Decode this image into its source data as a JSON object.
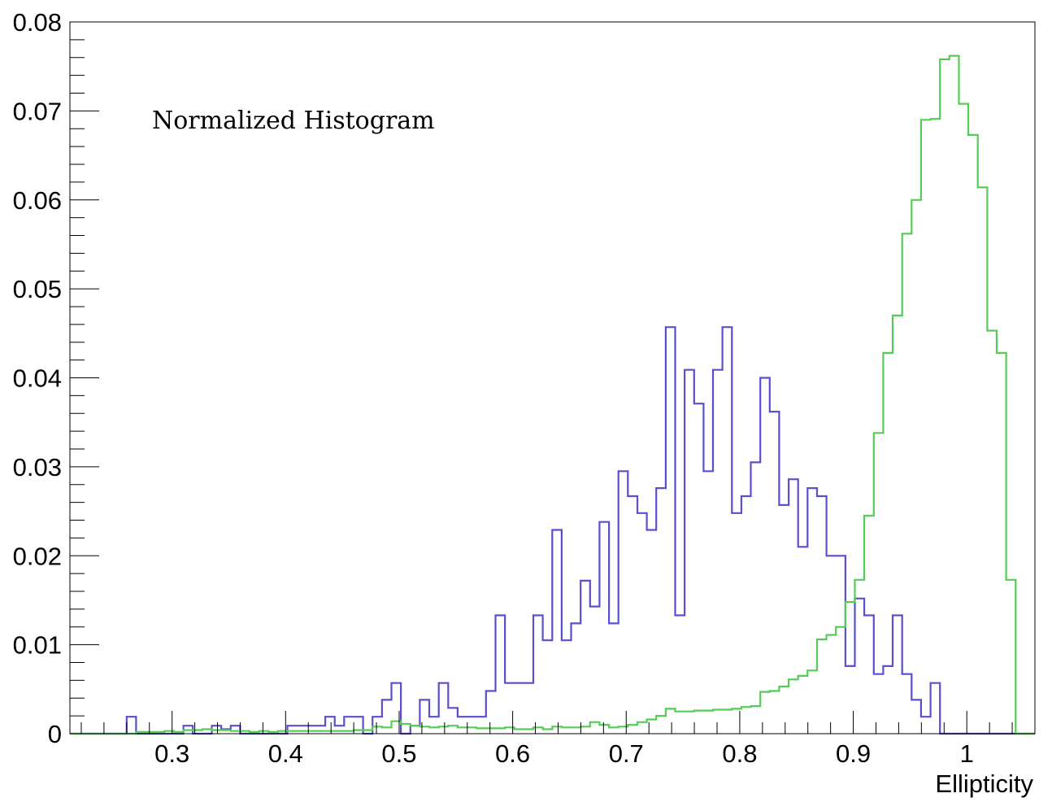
{
  "chart_data": {
    "type": "step-histogram",
    "annotation": "Normalized Histogram",
    "xlabel": "Ellipticity",
    "ylabel": "",
    "xlim": [
      0.21,
      1.06
    ],
    "ylim": [
      0,
      0.08
    ],
    "bin_width": 0.00833,
    "x_ticks": [
      {
        "value": 0.3,
        "label": "0.3"
      },
      {
        "value": 0.4,
        "label": "0.4"
      },
      {
        "value": 0.5,
        "label": "0.5"
      },
      {
        "value": 0.6,
        "label": "0.6"
      },
      {
        "value": 0.7,
        "label": "0.7"
      },
      {
        "value": 0.8,
        "label": "0.8"
      },
      {
        "value": 0.9,
        "label": "0.9"
      },
      {
        "value": 1.0,
        "label": "1"
      }
    ],
    "y_ticks": [
      {
        "value": 0,
        "label": "0"
      },
      {
        "value": 0.01,
        "label": "0.01"
      },
      {
        "value": 0.02,
        "label": "0.02"
      },
      {
        "value": 0.03,
        "label": "0.03"
      },
      {
        "value": 0.04,
        "label": "0.04"
      },
      {
        "value": 0.05,
        "label": "0.05"
      },
      {
        "value": 0.06,
        "label": "0.06"
      },
      {
        "value": 0.07,
        "label": "0.07"
      },
      {
        "value": 0.08,
        "label": "0.08"
      }
    ],
    "series": [
      {
        "color": "#5a4fcf",
        "bins": [
          [
            0.259,
            0.0019
          ],
          [
            0.309,
            0.0009
          ],
          [
            0.334,
            0.0009
          ],
          [
            0.342,
            0.0005
          ],
          [
            0.351,
            0.0009
          ],
          [
            0.401,
            0.0009
          ],
          [
            0.409,
            0.0009
          ],
          [
            0.417,
            0.0009
          ],
          [
            0.426,
            0.0009
          ],
          [
            0.434,
            0.0019
          ],
          [
            0.442,
            0.0009
          ],
          [
            0.451,
            0.0019
          ],
          [
            0.459,
            0.0019
          ],
          [
            0.476,
            0.0019
          ],
          [
            0.484,
            0.0038
          ],
          [
            0.492,
            0.0057
          ],
          [
            0.509,
            0.0009
          ],
          [
            0.517,
            0.0038
          ],
          [
            0.526,
            0.0019
          ],
          [
            0.534,
            0.0057
          ],
          [
            0.542,
            0.0029
          ],
          [
            0.551,
            0.0019
          ],
          [
            0.559,
            0.0019
          ],
          [
            0.567,
            0.0019
          ],
          [
            0.576,
            0.0048
          ],
          [
            0.584,
            0.0133
          ],
          [
            0.592,
            0.0057
          ],
          [
            0.601,
            0.0057
          ],
          [
            0.609,
            0.0057
          ],
          [
            0.617,
            0.0133
          ],
          [
            0.626,
            0.0105
          ],
          [
            0.634,
            0.0229
          ],
          [
            0.642,
            0.0105
          ],
          [
            0.651,
            0.0124
          ],
          [
            0.659,
            0.0172
          ],
          [
            0.667,
            0.0143
          ],
          [
            0.676,
            0.0238
          ],
          [
            0.684,
            0.0124
          ],
          [
            0.692,
            0.0295
          ],
          [
            0.701,
            0.0267
          ],
          [
            0.709,
            0.0248
          ],
          [
            0.717,
            0.0229
          ],
          [
            0.726,
            0.0276
          ],
          [
            0.734,
            0.0457
          ],
          [
            0.742,
            0.0133
          ],
          [
            0.751,
            0.0409
          ],
          [
            0.759,
            0.0371
          ],
          [
            0.767,
            0.0295
          ],
          [
            0.776,
            0.0409
          ],
          [
            0.784,
            0.0457
          ],
          [
            0.792,
            0.0248
          ],
          [
            0.801,
            0.0267
          ],
          [
            0.809,
            0.0305
          ],
          [
            0.817,
            0.04
          ],
          [
            0.826,
            0.0362
          ],
          [
            0.834,
            0.0257
          ],
          [
            0.842,
            0.0286
          ],
          [
            0.851,
            0.021
          ],
          [
            0.859,
            0.0276
          ],
          [
            0.867,
            0.0267
          ],
          [
            0.876,
            0.02
          ],
          [
            0.884,
            0.02
          ],
          [
            0.892,
            0.0076
          ],
          [
            0.901,
            0.0152
          ],
          [
            0.909,
            0.0133
          ],
          [
            0.917,
            0.0067
          ],
          [
            0.926,
            0.0076
          ],
          [
            0.934,
            0.0133
          ],
          [
            0.942,
            0.0067
          ],
          [
            0.951,
            0.0038
          ],
          [
            0.959,
            0.0019
          ],
          [
            0.967,
            0.0057
          ]
        ]
      },
      {
        "color": "#55cc55",
        "bins": [
          [
            0.267,
            0.0002
          ],
          [
            0.276,
            0.0002
          ],
          [
            0.284,
            0.0002
          ],
          [
            0.292,
            0.0003
          ],
          [
            0.301,
            0.0002
          ],
          [
            0.309,
            0.0004
          ],
          [
            0.317,
            0.0004
          ],
          [
            0.326,
            0.0005
          ],
          [
            0.334,
            0.0004
          ],
          [
            0.342,
            0.0004
          ],
          [
            0.351,
            0.0003
          ],
          [
            0.359,
            0.0003
          ],
          [
            0.367,
            0.0002
          ],
          [
            0.376,
            0.0003
          ],
          [
            0.384,
            0.0002
          ],
          [
            0.392,
            0.0003
          ],
          [
            0.401,
            0.0003
          ],
          [
            0.409,
            0.0003
          ],
          [
            0.417,
            0.0003
          ],
          [
            0.426,
            0.0003
          ],
          [
            0.434,
            0.0003
          ],
          [
            0.442,
            0.0003
          ],
          [
            0.451,
            0.0003
          ],
          [
            0.459,
            0.0004
          ],
          [
            0.467,
            0.0004
          ],
          [
            0.476,
            0.0008
          ],
          [
            0.484,
            0.0007
          ],
          [
            0.492,
            0.0014
          ],
          [
            0.501,
            0.0011
          ],
          [
            0.509,
            0.0009
          ],
          [
            0.517,
            0.0008
          ],
          [
            0.526,
            0.0007
          ],
          [
            0.534,
            0.0008
          ],
          [
            0.542,
            0.0009
          ],
          [
            0.551,
            0.0007
          ],
          [
            0.559,
            0.0007
          ],
          [
            0.567,
            0.0006
          ],
          [
            0.576,
            0.0006
          ],
          [
            0.584,
            0.0006
          ],
          [
            0.592,
            0.0007
          ],
          [
            0.601,
            0.0005
          ],
          [
            0.609,
            0.0005
          ],
          [
            0.617,
            0.0007
          ],
          [
            0.626,
            0.0005
          ],
          [
            0.634,
            0.0008
          ],
          [
            0.642,
            0.0007
          ],
          [
            0.651,
            0.0007
          ],
          [
            0.659,
            0.0008
          ],
          [
            0.667,
            0.0013
          ],
          [
            0.676,
            0.001
          ],
          [
            0.684,
            0.0007
          ],
          [
            0.692,
            0.0008
          ],
          [
            0.701,
            0.001
          ],
          [
            0.709,
            0.0013
          ],
          [
            0.717,
            0.0016
          ],
          [
            0.726,
            0.002
          ],
          [
            0.734,
            0.0028
          ],
          [
            0.742,
            0.0025
          ],
          [
            0.751,
            0.0025
          ],
          [
            0.759,
            0.0026
          ],
          [
            0.767,
            0.0026
          ],
          [
            0.776,
            0.0027
          ],
          [
            0.784,
            0.0027
          ],
          [
            0.792,
            0.0028
          ],
          [
            0.801,
            0.003
          ],
          [
            0.809,
            0.0031
          ],
          [
            0.817,
            0.0047
          ],
          [
            0.826,
            0.0048
          ],
          [
            0.834,
            0.0053
          ],
          [
            0.842,
            0.0061
          ],
          [
            0.851,
            0.0065
          ],
          [
            0.859,
            0.0071
          ],
          [
            0.867,
            0.0106
          ],
          [
            0.876,
            0.0111
          ],
          [
            0.884,
            0.012
          ],
          [
            0.892,
            0.0148
          ],
          [
            0.901,
            0.0173
          ],
          [
            0.909,
            0.0245
          ],
          [
            0.917,
            0.0338
          ],
          [
            0.926,
            0.0428
          ],
          [
            0.934,
            0.047
          ],
          [
            0.942,
            0.0562
          ],
          [
            0.951,
            0.06
          ],
          [
            0.959,
            0.069
          ],
          [
            0.967,
            0.0691
          ],
          [
            0.976,
            0.0758
          ],
          [
            0.984,
            0.0762
          ],
          [
            0.992,
            0.0708
          ],
          [
            1.001,
            0.0673
          ],
          [
            1.009,
            0.0614
          ],
          [
            1.017,
            0.0453
          ],
          [
            1.026,
            0.0428
          ],
          [
            1.034,
            0.0173
          ]
        ]
      }
    ]
  }
}
